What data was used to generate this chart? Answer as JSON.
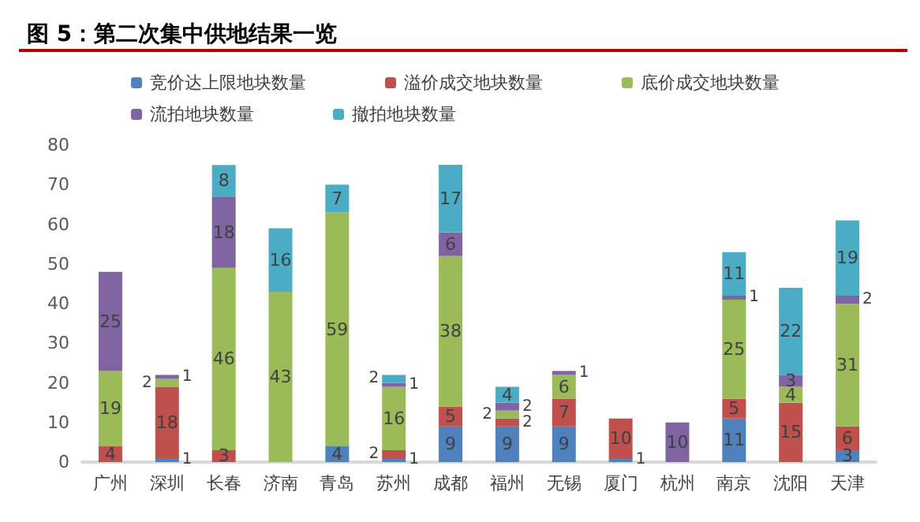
{
  "chart_data": {
    "type": "bar",
    "title": "图 5：第二次集中供地结果一览",
    "stacked": true,
    "data_labels": true,
    "legend": "top",
    "grid": false,
    "categories": [
      "广州",
      "深圳",
      "长春",
      "济南",
      "青岛",
      "苏州",
      "成都",
      "福州",
      "无锡",
      "厦门",
      "杭州",
      "南京",
      "沈阳",
      "天津"
    ],
    "ylim": [
      0,
      80
    ],
    "yticks": [
      0,
      10,
      20,
      30,
      40,
      50,
      60,
      70,
      80
    ],
    "series": [
      {
        "name": "竞价达上限地块数量",
        "color": "#4f81bd",
        "values": [
          null,
          1,
          null,
          null,
          4,
          1,
          9,
          9,
          9,
          1,
          null,
          11,
          null,
          3
        ]
      },
      {
        "name": "溢价成交地块数量",
        "color": "#c0504d",
        "values": [
          4,
          18,
          3,
          null,
          null,
          2,
          5,
          2,
          7,
          10,
          null,
          5,
          15,
          6
        ]
      },
      {
        "name": "底价成交地块数量",
        "color": "#9bbb59",
        "values": [
          19,
          2,
          46,
          43,
          59,
          16,
          38,
          2,
          6,
          null,
          null,
          25,
          4,
          31
        ]
      },
      {
        "name": "流拍地块数量",
        "color": "#8064a2",
        "values": [
          25,
          1,
          18,
          null,
          null,
          1,
          6,
          2,
          1,
          null,
          10,
          1,
          3,
          2
        ]
      },
      {
        "name": "撤拍地块数量",
        "color": "#4bacc6",
        "values": [
          null,
          null,
          8,
          16,
          7,
          2,
          17,
          4,
          null,
          null,
          null,
          11,
          22,
          19
        ]
      }
    ]
  }
}
